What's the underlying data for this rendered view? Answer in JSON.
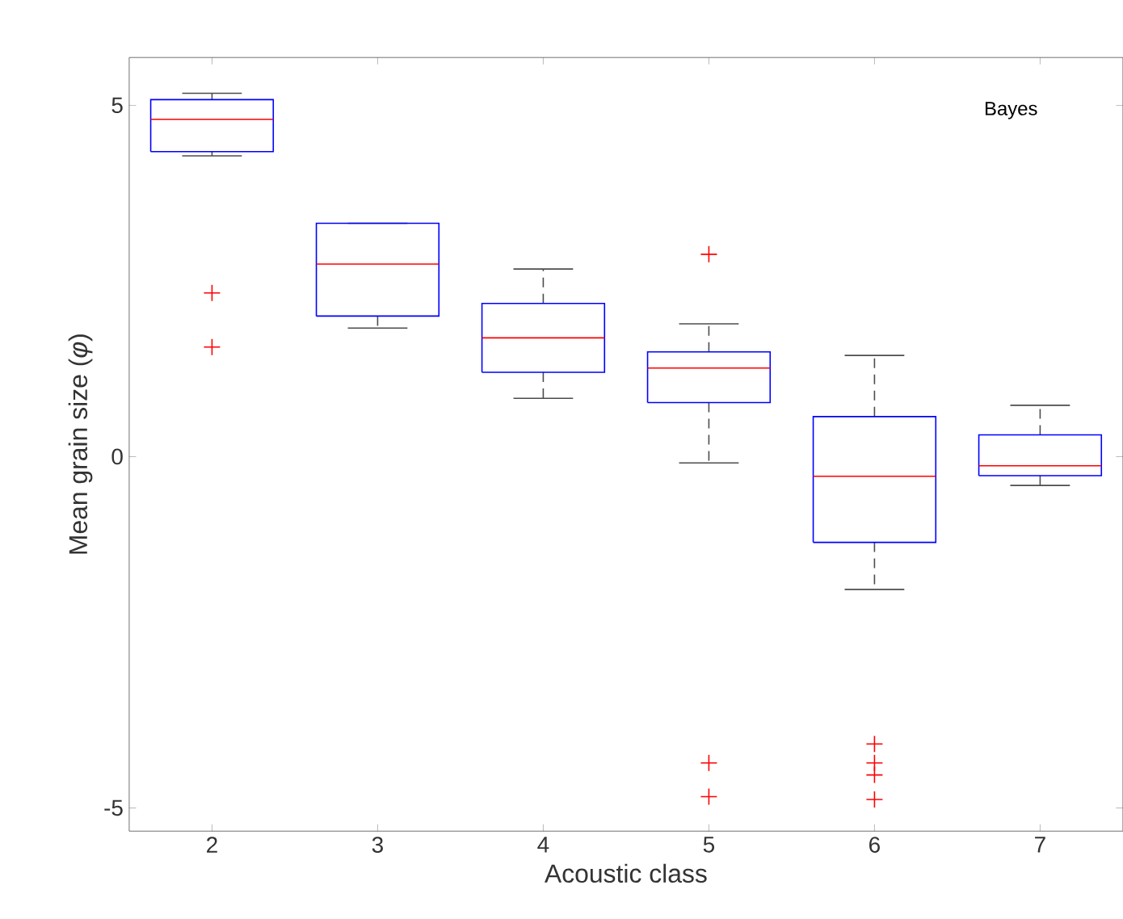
{
  "chart_data": {
    "type": "box",
    "xlabel": "Acoustic class",
    "ylabel": "Mean grain size (*φ*)",
    "annotations": [
      "Bayes"
    ],
    "categories": [
      "2",
      "3",
      "4",
      "5",
      "6",
      "7"
    ],
    "color": "#0000ff",
    "marker": "cross",
    "grid": false,
    "ylim": [
      -5.33,
      5.68
    ],
    "yticks": [
      -5,
      0,
      5
    ],
    "boxes": [
      {
        "low": 4.28,
        "q1": 4.34,
        "median": 4.8,
        "q3": 5.08,
        "high": 5.17,
        "outliers": [
          2.33,
          1.56
        ]
      },
      {
        "low": 1.83,
        "q1": 2.0,
        "median": 2.74,
        "q3": 3.32,
        "high": 3.32
      },
      {
        "low": 0.83,
        "q1": 1.2,
        "median": 1.69,
        "q3": 2.18,
        "high": 2.67
      },
      {
        "low": -0.09,
        "q1": 0.77,
        "median": 1.26,
        "q3": 1.49,
        "high": 1.89,
        "outliers": [
          2.88,
          -4.36,
          -4.84
        ]
      },
      {
        "low": -1.89,
        "q1": -1.22,
        "median": -0.28,
        "q3": 0.57,
        "high": 1.44,
        "outliers": [
          -4.09,
          -4.36,
          -4.53,
          -4.88
        ]
      },
      {
        "low": -0.41,
        "q1": -0.27,
        "median": -0.13,
        "q3": 0.31,
        "high": 0.73
      }
    ]
  }
}
